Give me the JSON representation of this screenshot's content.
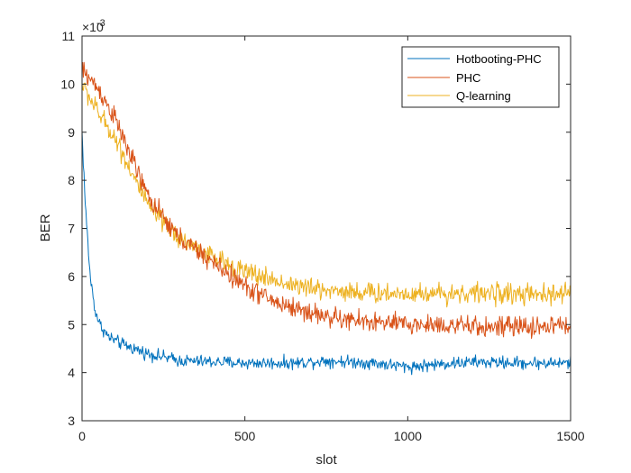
{
  "chart_data": {
    "type": "line",
    "title": "",
    "xlabel": "slot",
    "ylabel": "BER",
    "y_exponent_label": "×10",
    "y_exponent_power": "-3",
    "xlim": [
      0,
      1500
    ],
    "ylim": [
      3,
      11
    ],
    "xticks": [
      0,
      500,
      1000,
      1500
    ],
    "xtick_labels": [
      "0",
      "500",
      "1000",
      "1500"
    ],
    "yticks": [
      3,
      4,
      5,
      6,
      7,
      8,
      9,
      10,
      11
    ],
    "ytick_labels": [
      "3",
      "4",
      "5",
      "6",
      "7",
      "8",
      "9",
      "10",
      "11"
    ],
    "grid": false,
    "legend_position": "top-right",
    "series": [
      {
        "name": "Hotbooting-PHC",
        "color": "#0072BD",
        "noise": 0.12,
        "x": [
          0,
          10,
          25,
          40,
          55,
          80,
          120,
          200,
          300,
          500,
          650,
          750,
          900,
          1000,
          1100,
          1200,
          1350,
          1500
        ],
        "values": [
          9.0,
          7.5,
          6.0,
          5.3,
          5.0,
          4.75,
          4.6,
          4.4,
          4.25,
          4.2,
          4.2,
          4.25,
          4.2,
          4.12,
          4.18,
          4.22,
          4.2,
          4.2
        ]
      },
      {
        "name": "PHC",
        "color": "#D95319",
        "noise": 0.2,
        "x": [
          0,
          50,
          100,
          150,
          200,
          250,
          300,
          400,
          500,
          600,
          700,
          800,
          900,
          1000,
          1100,
          1200,
          1300,
          1400,
          1500
        ],
        "values": [
          10.3,
          9.9,
          9.3,
          8.5,
          7.7,
          7.2,
          6.8,
          6.3,
          5.8,
          5.45,
          5.25,
          5.1,
          5.05,
          5.0,
          5.0,
          4.95,
          4.95,
          4.95,
          5.0
        ]
      },
      {
        "name": "Q-learning",
        "color": "#EDB120",
        "noise": 0.2,
        "x": [
          0,
          50,
          100,
          150,
          200,
          250,
          300,
          400,
          500,
          600,
          700,
          800,
          900,
          1000,
          1100,
          1200,
          1300,
          1400,
          1500
        ],
        "values": [
          10.0,
          9.4,
          8.9,
          8.2,
          7.5,
          7.1,
          6.8,
          6.4,
          6.1,
          5.9,
          5.75,
          5.7,
          5.65,
          5.65,
          5.65,
          5.65,
          5.65,
          5.6,
          5.65
        ]
      }
    ]
  }
}
